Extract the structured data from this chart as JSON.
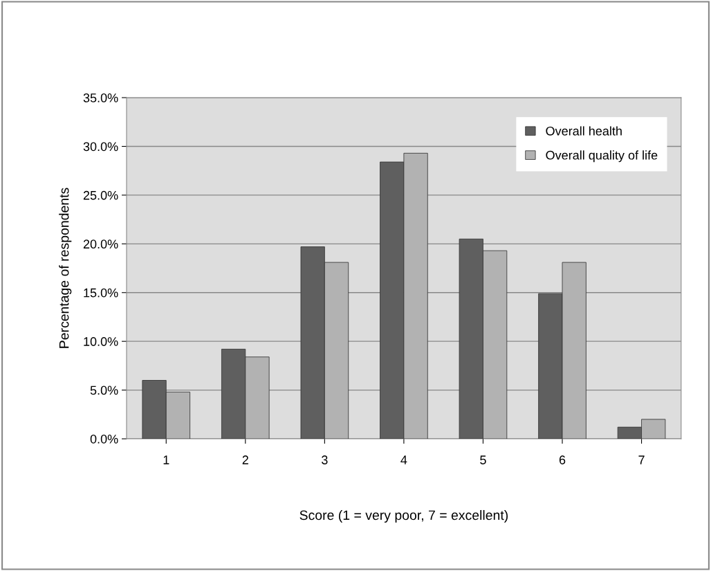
{
  "chart_data": {
    "type": "bar",
    "xlabel": "Score (1 = very poor, 7 = excellent)",
    "ylabel": "Percentage of respondents",
    "categories": [
      "1",
      "2",
      "3",
      "4",
      "5",
      "6",
      "7"
    ],
    "series": [
      {
        "name": "Overall health",
        "color": "#5f5f5f",
        "values": [
          6.0,
          9.2,
          19.7,
          28.4,
          20.5,
          14.9,
          1.2
        ]
      },
      {
        "name": "Overall quality of life",
        "color": "#b2b2b2",
        "values": [
          4.8,
          8.4,
          18.1,
          29.3,
          19.3,
          18.1,
          2.0
        ]
      }
    ],
    "ylim": [
      0,
      35
    ],
    "yticks": [
      {
        "value": 0,
        "label": "0.0%"
      },
      {
        "value": 5,
        "label": "5.0%"
      },
      {
        "value": 10,
        "label": "10.0%"
      },
      {
        "value": 15,
        "label": "15.0%"
      },
      {
        "value": 20,
        "label": "20.0%"
      },
      {
        "value": 25,
        "label": "25.0%"
      },
      {
        "value": 30,
        "label": "30.0%"
      },
      {
        "value": 35,
        "label": "35.0%"
      }
    ],
    "grid": "y",
    "legend": "top right"
  }
}
